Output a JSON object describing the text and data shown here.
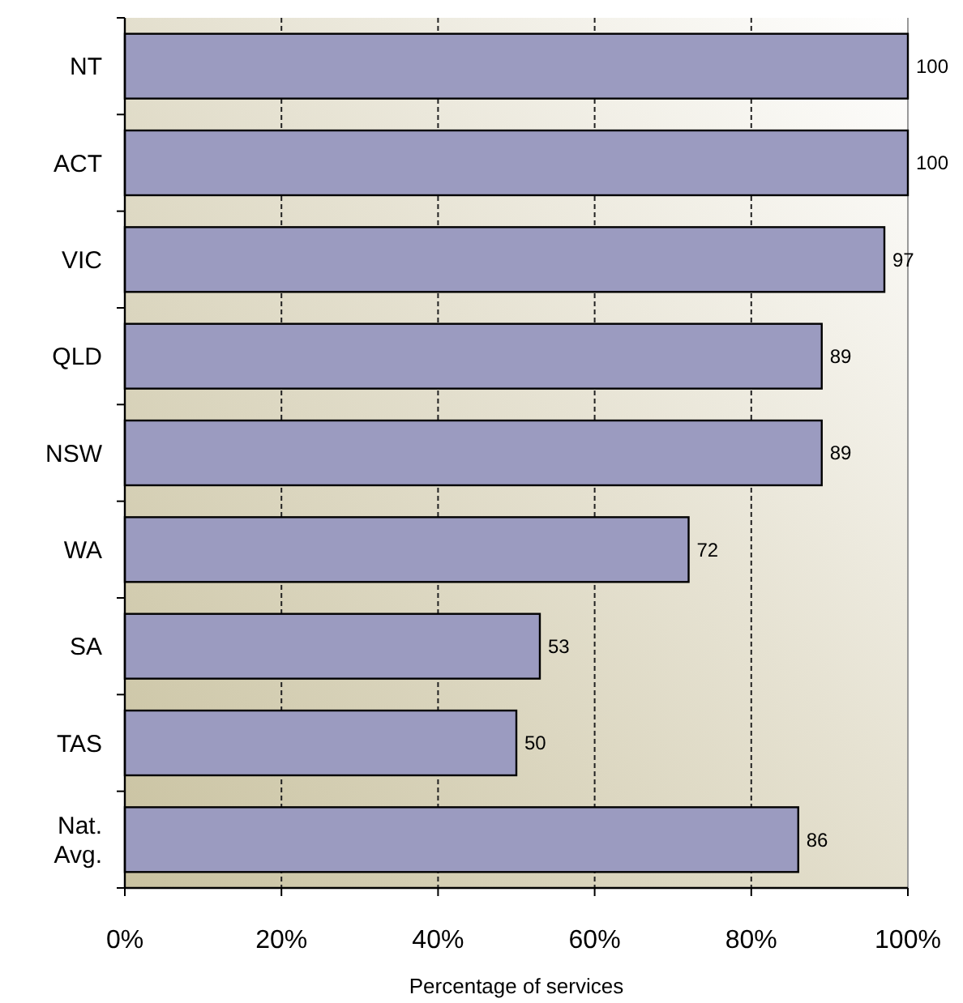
{
  "chart_data": {
    "type": "bar",
    "orientation": "horizontal",
    "categories": [
      "NT",
      "ACT",
      "VIC",
      "QLD",
      "NSW",
      "WA",
      "SA",
      "TAS",
      "Nat. Avg."
    ],
    "values": [
      100,
      100,
      97,
      89,
      89,
      72,
      53,
      50,
      86
    ],
    "color": "#9b9bc0",
    "xlabel": "Percentage of services",
    "xlim": [
      0,
      100
    ],
    "xticks": [
      {
        "value": 0,
        "label": "0%"
      },
      {
        "value": 20,
        "label": "20%"
      },
      {
        "value": 40,
        "label": "40%"
      },
      {
        "value": 60,
        "label": "60%"
      },
      {
        "value": 80,
        "label": "80%"
      },
      {
        "value": 100,
        "label": "100%"
      }
    ],
    "grid": "x",
    "data_labels": true
  }
}
